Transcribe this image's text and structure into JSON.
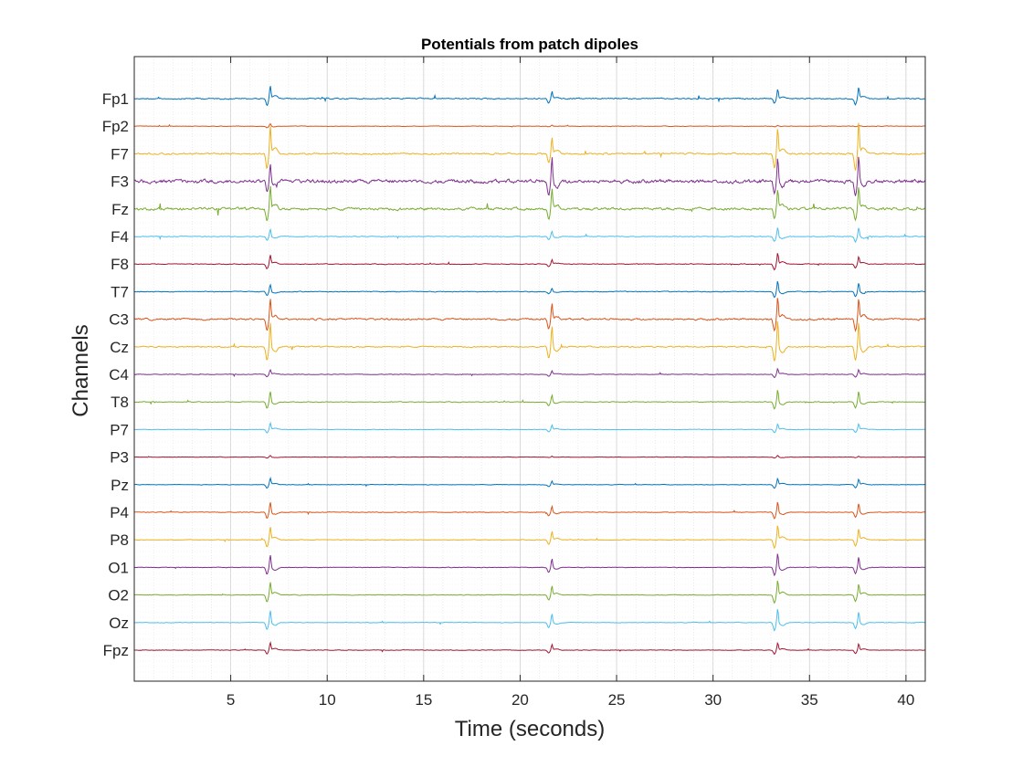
{
  "chart_data": {
    "type": "line",
    "title": "Potentials from patch dipoles",
    "xlabel": "Time (seconds)",
    "ylabel": "Channels",
    "xlim": [
      0,
      41
    ],
    "xticks": [
      5,
      10,
      15,
      20,
      25,
      30,
      35,
      40
    ],
    "grid": "minor dotted",
    "spike_times": [
      7.0,
      21.6,
      33.3,
      37.5
    ],
    "series": [
      {
        "name": "Fp1",
        "color": "#0072BD",
        "amplitudes": [
          14,
          8,
          10,
          12
        ],
        "noise": 1.2
      },
      {
        "name": "Fp2",
        "color": "#D95319",
        "amplitudes": [
          3,
          1,
          1,
          1
        ],
        "noise": 0.5
      },
      {
        "name": "F7",
        "color": "#EDB120",
        "amplitudes": [
          30,
          18,
          28,
          34
        ],
        "noise": 1.5
      },
      {
        "name": "F3",
        "color": "#7E2F8E",
        "amplitudes": [
          22,
          28,
          26,
          28
        ],
        "noise": 3.5
      },
      {
        "name": "Fz",
        "color": "#77AC30",
        "amplitudes": [
          25,
          22,
          20,
          24
        ],
        "noise": 2.5
      },
      {
        "name": "F4",
        "color": "#4DBEEE",
        "amplitudes": [
          8,
          6,
          10,
          10
        ],
        "noise": 0.8
      },
      {
        "name": "F8",
        "color": "#A2142F",
        "amplitudes": [
          10,
          5,
          12,
          8
        ],
        "noise": 0.7
      },
      {
        "name": "T7",
        "color": "#0072BD",
        "amplitudes": [
          8,
          4,
          12,
          10
        ],
        "noise": 0.8
      },
      {
        "name": "C3",
        "color": "#D95319",
        "amplitudes": [
          22,
          18,
          24,
          22
        ],
        "noise": 1.8
      },
      {
        "name": "Cz",
        "color": "#EDB120",
        "amplitudes": [
          28,
          24,
          30,
          28
        ],
        "noise": 1.2
      },
      {
        "name": "C4",
        "color": "#7E2F8E",
        "amplitudes": [
          5,
          4,
          6,
          5
        ],
        "noise": 0.6
      },
      {
        "name": "T8",
        "color": "#77AC30",
        "amplitudes": [
          12,
          8,
          14,
          12
        ],
        "noise": 0.7
      },
      {
        "name": "P7",
        "color": "#4DBEEE",
        "amplitudes": [
          7,
          5,
          6,
          6
        ],
        "noise": 0.5
      },
      {
        "name": "P3",
        "color": "#A2142F",
        "amplitudes": [
          2,
          1,
          2,
          1
        ],
        "noise": 0.4
      },
      {
        "name": "Pz",
        "color": "#0072BD",
        "amplitudes": [
          7,
          4,
          7,
          6
        ],
        "noise": 0.5
      },
      {
        "name": "P4",
        "color": "#D95319",
        "amplitudes": [
          12,
          7,
          12,
          10
        ],
        "noise": 0.6
      },
      {
        "name": "P8",
        "color": "#EDB120",
        "amplitudes": [
          14,
          9,
          16,
          12
        ],
        "noise": 0.6
      },
      {
        "name": "O1",
        "color": "#7E2F8E",
        "amplitudes": [
          14,
          10,
          16,
          12
        ],
        "noise": 0.6
      },
      {
        "name": "O2",
        "color": "#77AC30",
        "amplitudes": [
          14,
          10,
          16,
          12
        ],
        "noise": 0.6
      },
      {
        "name": "Oz",
        "color": "#4DBEEE",
        "amplitudes": [
          14,
          10,
          16,
          12
        ],
        "noise": 0.6
      },
      {
        "name": "Fpz",
        "color": "#A2142F",
        "amplitudes": [
          8,
          6,
          8,
          7
        ],
        "noise": 0.5
      }
    ]
  }
}
